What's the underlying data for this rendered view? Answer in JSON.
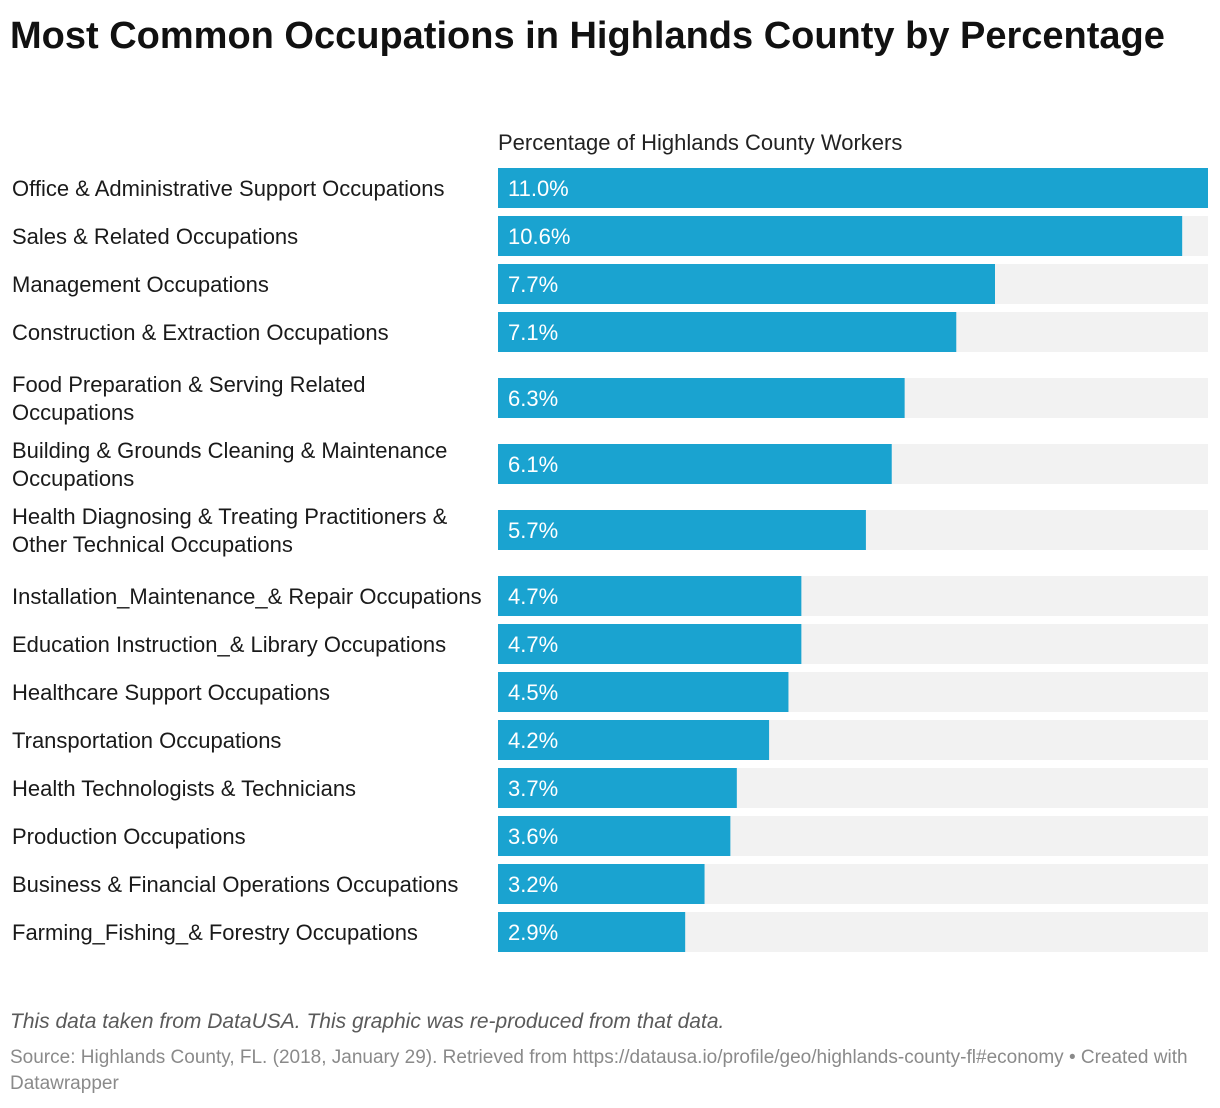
{
  "title": "Most Common Occupations in Highlands County by Percentage",
  "notes": "This data taken from DataUSA. This graphic was re-produced from that data.",
  "source": "Source: Highlands County, FL. (2018, January 29). Retrieved from https://datausa.io/profile/geo/highlands-county-fl#economy • Created with Datawrapper",
  "colors": {
    "bar": "#1aa3d0",
    "track": "#f2f2f2",
    "value_text": "#ffffff"
  },
  "chart_data": {
    "type": "bar",
    "orientation": "horizontal",
    "column_header": "Percentage of Highlands County Workers",
    "categories": [
      "Office & Administrative Support Occupations",
      "Sales & Related Occupations",
      "Management Occupations",
      "Construction & Extraction Occupations",
      "Food Preparation & Serving Related Occupations",
      "Building & Grounds Cleaning & Maintenance Occupations",
      "Health Diagnosing & Treating Practitioners & Other Technical Occupations",
      "Installation_Maintenance_& Repair Occupations",
      "Education Instruction_& Library Occupations",
      "Healthcare Support Occupations",
      "Transportation Occupations",
      "Health Technologists & Technicians",
      "Production Occupations",
      "Business & Financial Operations Occupations",
      "Farming_Fishing_& Forestry Occupations"
    ],
    "values": [
      11.0,
      10.6,
      7.7,
      7.1,
      6.3,
      6.1,
      5.7,
      4.7,
      4.7,
      4.5,
      4.2,
      3.7,
      3.6,
      3.2,
      2.9
    ],
    "value_labels": [
      "11.0%",
      "10.6%",
      "7.7%",
      "7.1%",
      "6.3%",
      "6.1%",
      "5.7%",
      "4.7%",
      "4.7%",
      "4.5%",
      "4.2%",
      "3.7%",
      "3.6%",
      "3.2%",
      "2.9%"
    ],
    "xlim": [
      0,
      11.0
    ],
    "grid": false,
    "legend": "none"
  }
}
